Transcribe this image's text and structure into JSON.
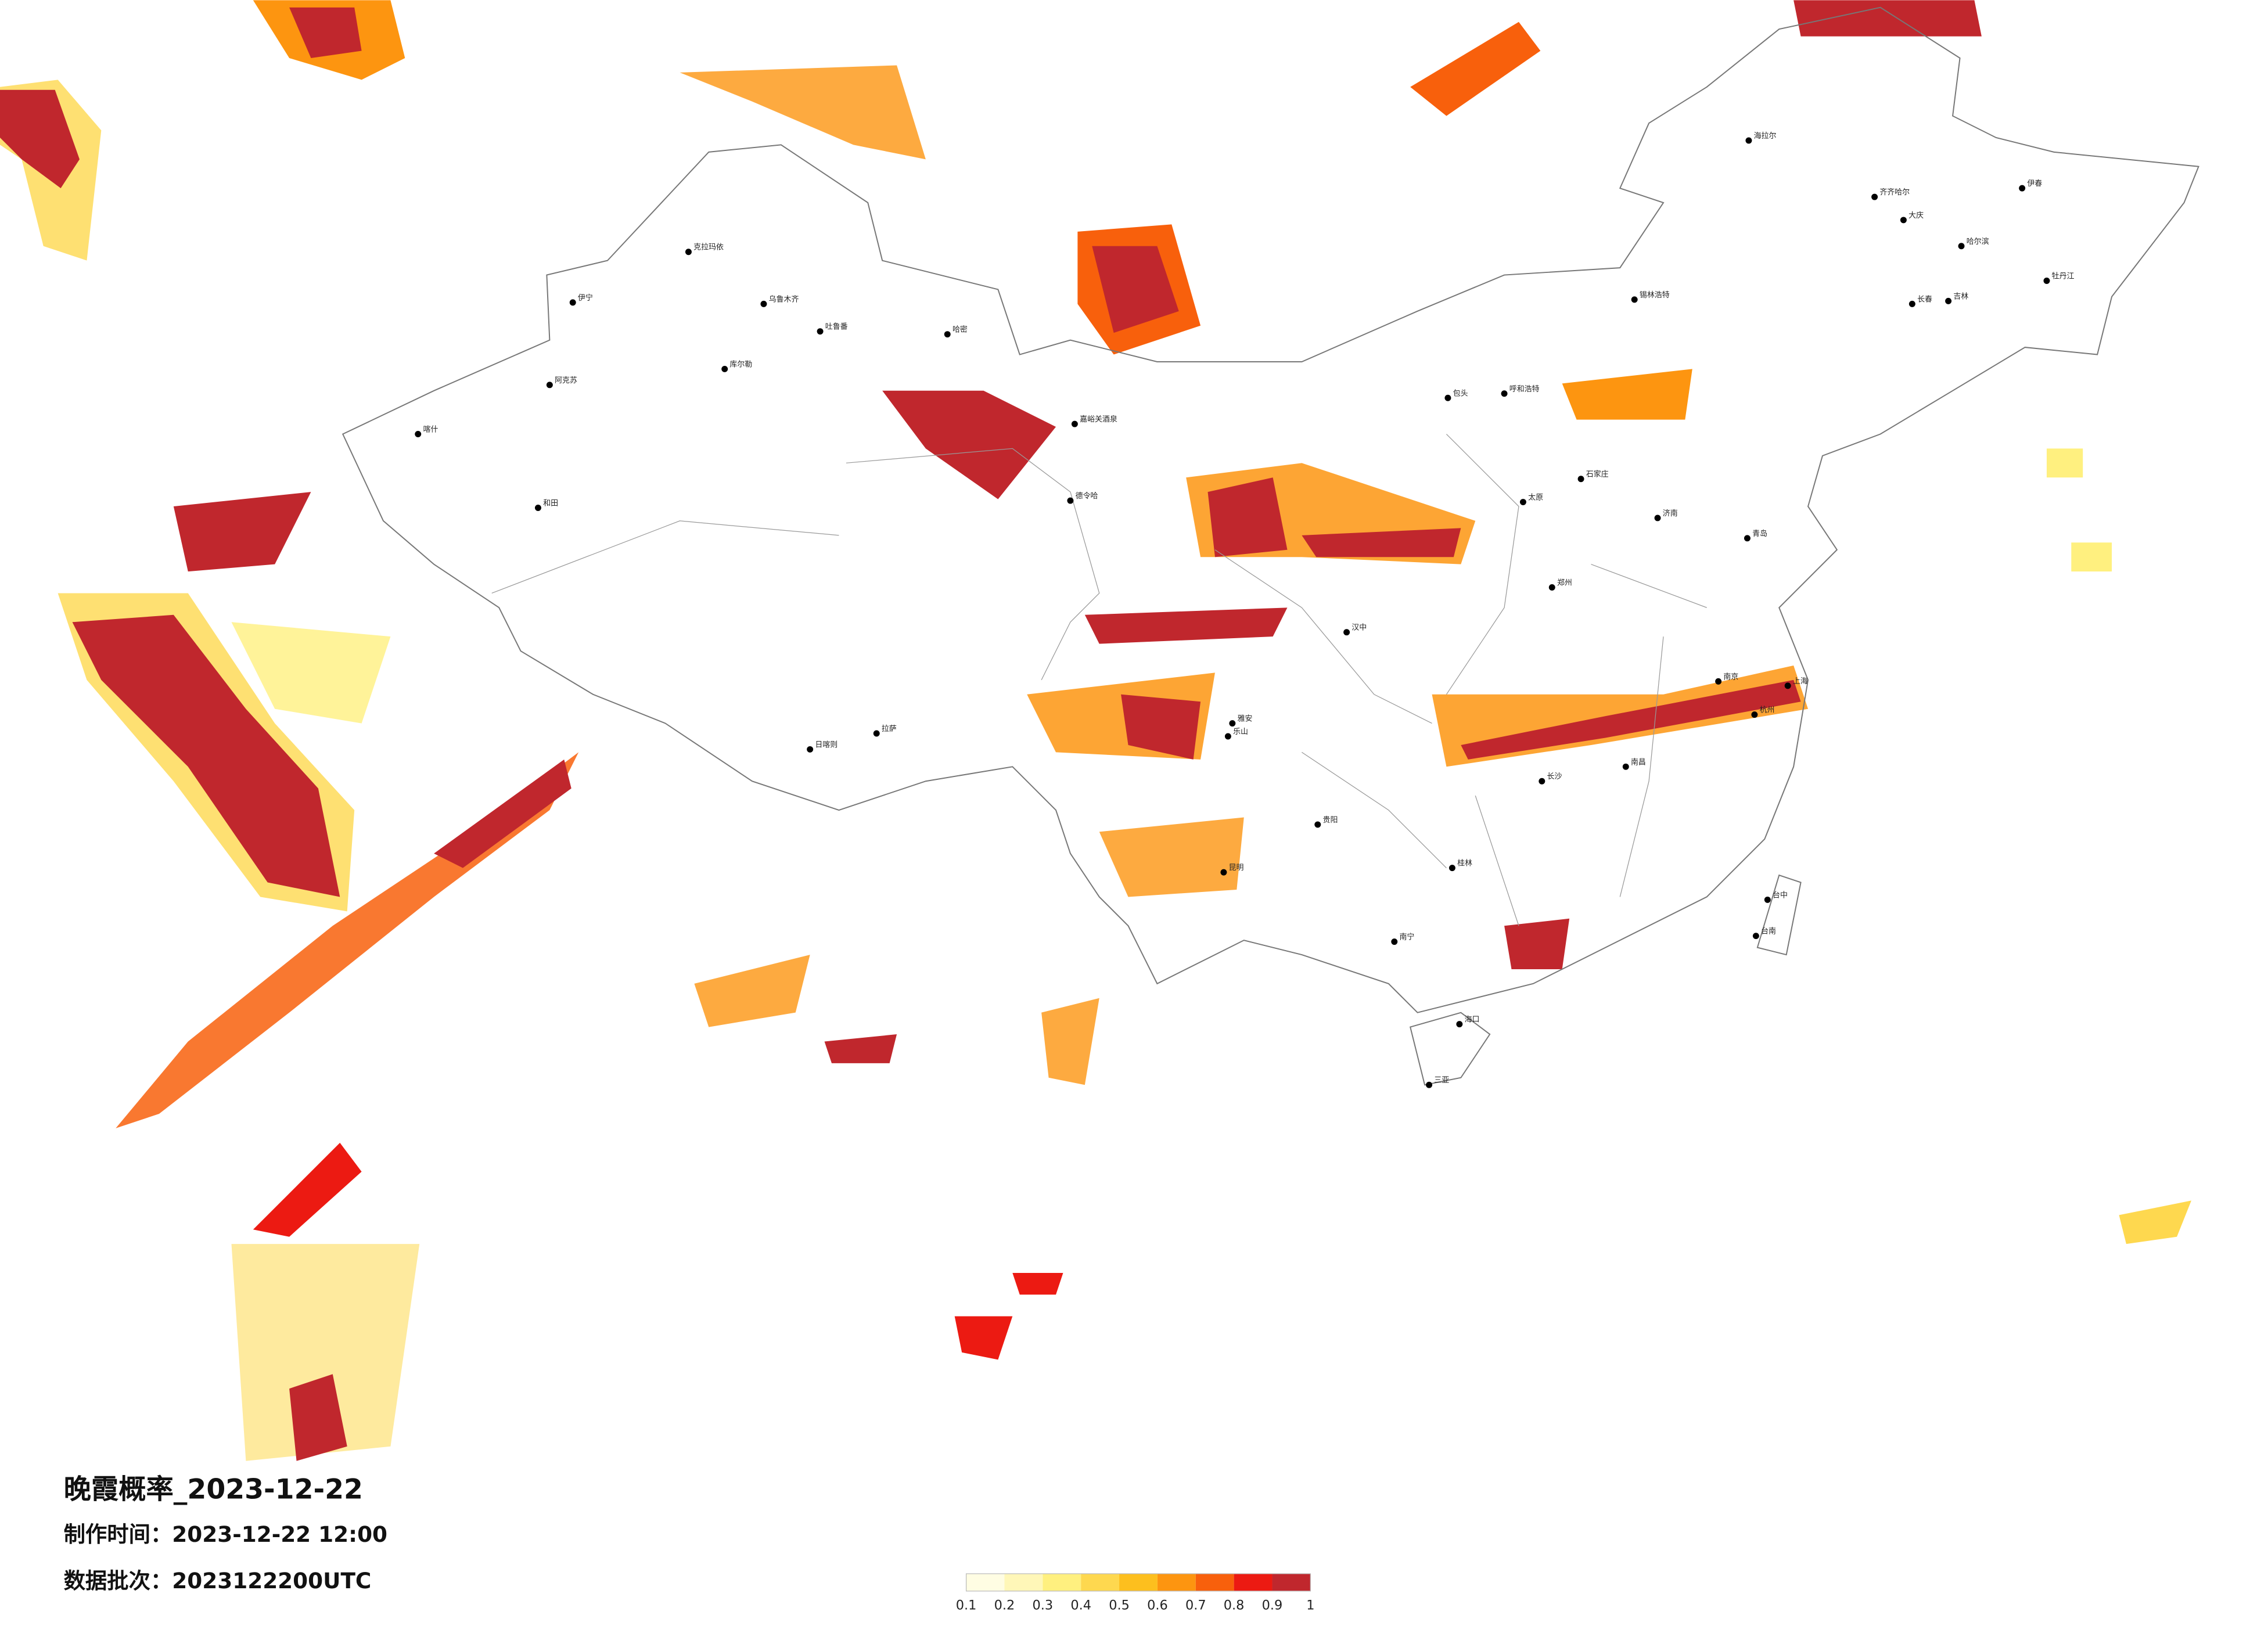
{
  "title": "晚霞概率_2023-12-22",
  "made_time": "制作时间：2023-12-22 12:00",
  "batch": "数据批次：2023122200UTC",
  "legend": {
    "ticks": [
      0.1,
      0.2,
      0.3,
      0.4,
      0.5,
      0.6,
      0.7,
      0.8,
      0.9,
      1
    ],
    "colors": [
      "#fffde3",
      "#fff7b8",
      "#fff07f",
      "#fed84f",
      "#fdbf1e",
      "#fd9510",
      "#f8600c",
      "#ec1a12",
      "#c0272d"
    ]
  },
  "cities": [
    "克拉玛依",
    "伊宁",
    "乌鲁木齐",
    "吐鲁番",
    "哈密",
    "库尔勒",
    "阿克苏",
    "喀什",
    "和田",
    "嘉峪关酒泉",
    "德令哈",
    "日喀则",
    "拉萨",
    "海拉尔",
    "齐齐哈尔",
    "大庆",
    "哈尔滨",
    "伊春",
    "牡丹江",
    "长春",
    "吉林",
    "锡林浩特",
    "呼和浩特",
    "包头",
    "石家庄",
    "太原",
    "济南",
    "青岛",
    "郑州",
    "汉中",
    "南京",
    "上海",
    "杭州",
    "南昌",
    "长沙",
    "雅安",
    "乐山",
    "贵阳",
    "昆明",
    "桂林",
    "南宁",
    "海口",
    "三亚",
    "台中",
    "台南"
  ]
}
